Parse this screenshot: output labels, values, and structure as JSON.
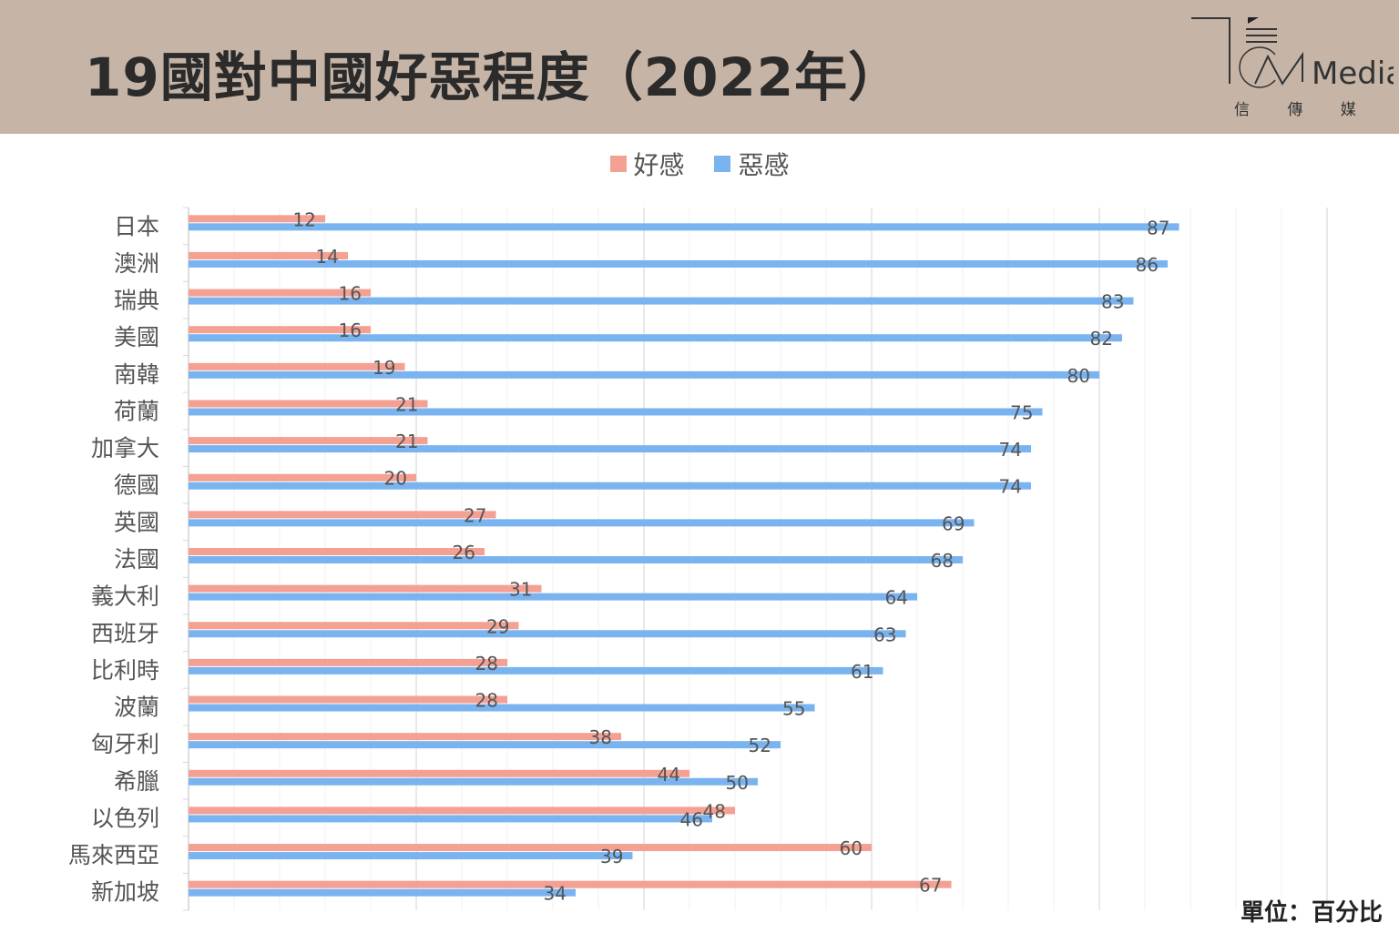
{
  "header": {
    "title": "19國對中國好惡程度（2022年）",
    "logo_text": "Media",
    "logo_subtitle": "信 傳 媒"
  },
  "unit_note": "單位：百分比",
  "chart_data": {
    "type": "bar",
    "orientation": "horizontal",
    "title": "19國對中國好惡程度（2022年）",
    "categories": [
      "日本",
      "澳洲",
      "瑞典",
      "美國",
      "南韓",
      "荷蘭",
      "加拿大",
      "德國",
      "英國",
      "法國",
      "義大利",
      "西班牙",
      "比利時",
      "波蘭",
      "匈牙利",
      "希臘",
      "以色列",
      "馬來西亞",
      "新加坡"
    ],
    "series": [
      {
        "name": "好感",
        "color": "#f4a093",
        "values": [
          12,
          14,
          16,
          16,
          19,
          21,
          21,
          20,
          27,
          26,
          31,
          29,
          28,
          28,
          38,
          44,
          48,
          60,
          67
        ]
      },
      {
        "name": "惡感",
        "color": "#7ab4f0",
        "values": [
          87,
          86,
          83,
          82,
          80,
          75,
          74,
          74,
          69,
          68,
          64,
          63,
          61,
          55,
          52,
          50,
          46,
          39,
          34
        ]
      }
    ],
    "xlim": [
      0,
      100
    ],
    "grid": true,
    "legend_position": "top-center",
    "xlabel": "",
    "ylabel": ""
  }
}
